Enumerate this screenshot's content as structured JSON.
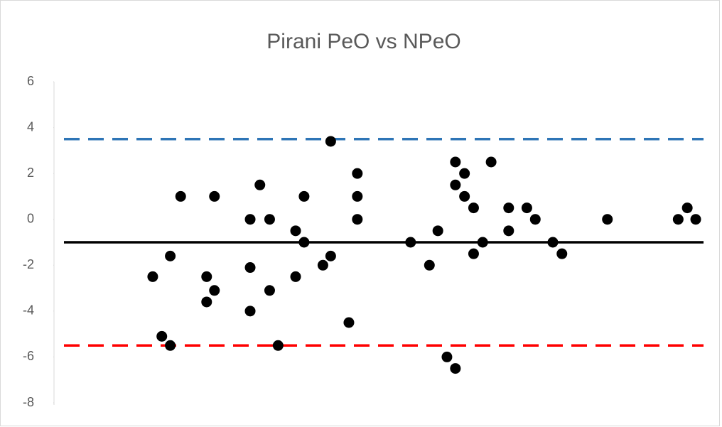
{
  "chart_data": {
    "type": "scatter",
    "title": "Pirani PeO vs NPeO",
    "x": [
      15.2,
      16.6,
      17.9,
      17.9,
      19.5,
      23.5,
      23.5,
      24.7,
      24.7,
      30.2,
      30.2,
      30.2,
      31.7,
      33.2,
      33.2,
      34.5,
      37.2,
      37.2,
      38.5,
      38.5,
      41.4,
      42.6,
      42.6,
      45.4,
      46.7,
      46.7,
      46.7,
      54.9,
      57.8,
      59.1,
      60.5,
      61.8,
      61.8,
      61.8,
      63.2,
      63.2,
      64.6,
      64.6,
      66.0,
      67.3,
      70.0,
      70.0,
      72.8,
      74.1,
      76.8,
      78.2,
      85.2,
      96.1,
      97.5,
      98.8
    ],
    "values": [
      -2.5,
      -5.1,
      -5.5,
      -1.6,
      1,
      -2.5,
      -3.6,
      -3.1,
      1,
      0,
      -2.1,
      -4,
      1.5,
      0,
      -3.1,
      -5.5,
      -0.5,
      -2.5,
      1,
      -1,
      -2,
      -1.6,
      3.4,
      -4.5,
      2,
      1,
      0,
      -1,
      -2,
      -0.5,
      -6,
      -6.5,
      2.5,
      1.5,
      2,
      1,
      0.5,
      -1.5,
      -1,
      2.5,
      0.5,
      -0.5,
      0.5,
      0,
      -1,
      -1.5,
      0,
      0,
      0.5,
      0
    ],
    "color": "#000000",
    "xlim": [
      0,
      100
    ],
    "ylim": [
      -8,
      6
    ],
    "yticks": [
      -8,
      -6,
      -4,
      -2,
      0,
      2,
      4,
      6
    ],
    "reference_lines": [
      {
        "value": 3.5,
        "color": "#2e75b6",
        "dashed": true
      },
      {
        "value": -1,
        "color": "#000000",
        "dashed": false
      },
      {
        "value": -5.5,
        "color": "#ff0000",
        "dashed": true
      }
    ]
  }
}
